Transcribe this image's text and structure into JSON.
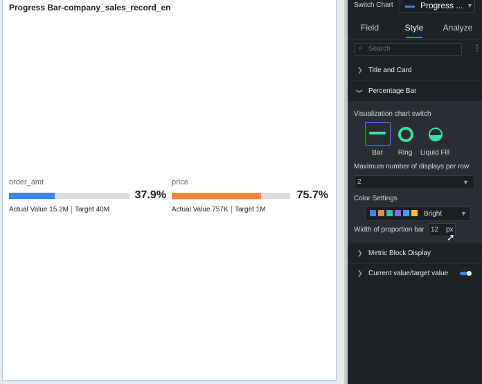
{
  "card": {
    "title": "Progress Bar-company_sales_record_en",
    "metrics": [
      {
        "name": "order_amt",
        "value": 37.9,
        "value_label": "37.9%",
        "actual": "Actual Value 15.2M",
        "target": "Target 40M",
        "color": "#3a86f0"
      },
      {
        "name": "price",
        "value": 75.7,
        "value_label": "75.7%",
        "actual": "Actual Value 757K",
        "target": "Target 1M",
        "color": "#f5843a"
      }
    ]
  },
  "panel": {
    "switch_label": "Switch Chart",
    "chart_name": "Progress ...",
    "tabs": [
      "Field",
      "Style",
      "Analyze"
    ],
    "search": "Search",
    "sections": [
      "Title and Card",
      "Percentage Bar",
      "Metric Block Display",
      "Current value/target value"
    ],
    "switch_title": "Visualization chart switch",
    "chart_options": [
      "Bar",
      "Ring",
      "Liquid Fill"
    ],
    "max_label": "Maximum number of displays per row",
    "max_value": "2",
    "color_label": "Color Settings",
    "palette": "Bright",
    "width_label": "Width of proportion bar",
    "width_value": "12",
    "width_unit": "px"
  }
}
